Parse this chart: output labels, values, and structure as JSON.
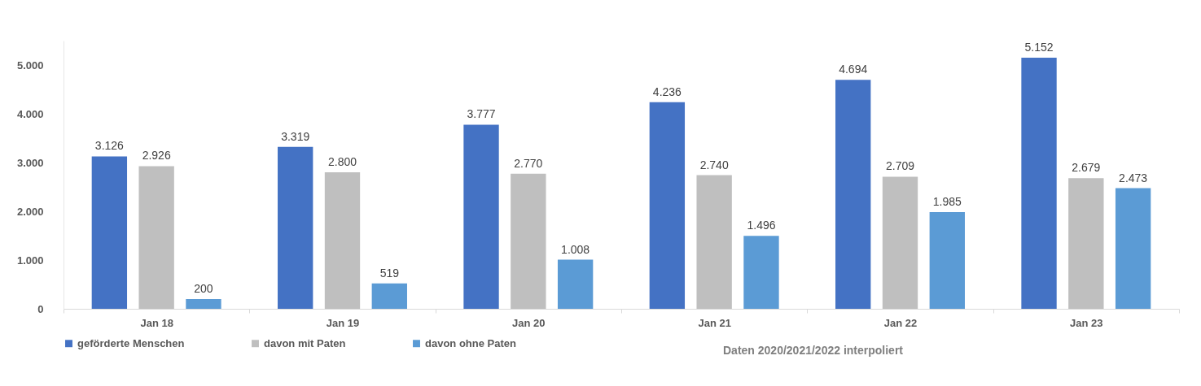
{
  "chart_data": {
    "type": "bar",
    "categories": [
      "Jan 18",
      "Jan 19",
      "Jan 20",
      "Jan 21",
      "Jan 22",
      "Jan 23"
    ],
    "series": [
      {
        "name": "geförderte Menschen",
        "color": "#4472c4",
        "values": [
          3126,
          3319,
          3777,
          4236,
          4694,
          5152
        ],
        "value_labels": [
          "3.126",
          "3.319",
          "3.777",
          "4.236",
          "4.694",
          "5.152"
        ]
      },
      {
        "name": "davon mit Paten",
        "color": "#bfbfbf",
        "values": [
          2926,
          2800,
          2770,
          2740,
          2709,
          2679
        ],
        "value_labels": [
          "2.926",
          "2.800",
          "2.770",
          "2.740",
          "2.709",
          "2.679"
        ]
      },
      {
        "name": "davon ohne Paten",
        "color": "#5b9bd5",
        "values": [
          200,
          519,
          1008,
          1496,
          1985,
          2473
        ],
        "value_labels": [
          "200",
          "519",
          "1.008",
          "1.496",
          "1.985",
          "2.473"
        ]
      }
    ],
    "ylim": [
      0,
      5500
    ],
    "yticks": [
      {
        "value": 0,
        "label": "0"
      },
      {
        "value": 1000,
        "label": "1.000"
      },
      {
        "value": 2000,
        "label": "2.000"
      },
      {
        "value": 3000,
        "label": "3.000"
      },
      {
        "value": 4000,
        "label": "4.000"
      },
      {
        "value": 5000,
        "label": "5.000"
      }
    ],
    "legend": "bottom left",
    "annotations": [
      "Daten 2020/2021/2022 interpoliert"
    ]
  }
}
